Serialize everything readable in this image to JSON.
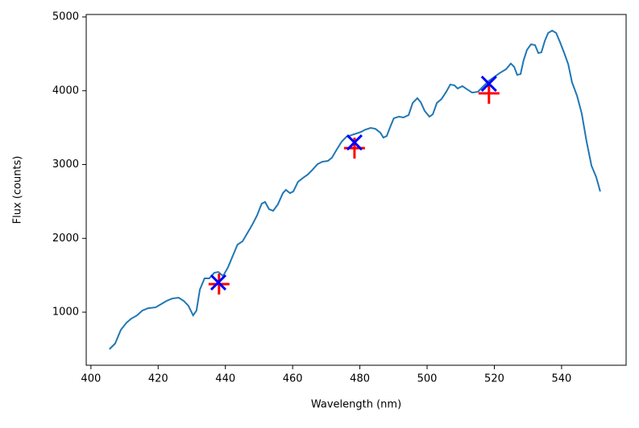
{
  "chart_data": {
    "type": "line",
    "xlabel": "Wavelength (nm)",
    "ylabel": "Flux (counts)",
    "xlim": [
      398.6,
      559.2
    ],
    "ylim": [
      281,
      5033
    ],
    "xticks": [
      400,
      420,
      440,
      460,
      480,
      500,
      520,
      540
    ],
    "yticks": [
      1000,
      2000,
      3000,
      4000,
      5000
    ],
    "series": [
      {
        "color": "#1f77b4",
        "x": [
          405.5,
          407.2,
          408.9,
          410.6,
          412.0,
          413.7,
          415.3,
          417.0,
          419.2,
          420.9,
          422.5,
          424.2,
          426.1,
          427.6,
          429.0,
          430.4,
          431.4,
          432.4,
          433.8,
          435.2,
          436.7,
          437.9,
          439.3,
          440.8,
          442.2,
          443.6,
          445.1,
          446.5,
          447.9,
          449.4,
          450.8,
          451.8,
          453.0,
          454.2,
          455.6,
          457.1,
          458.0,
          459.2,
          460.2,
          461.6,
          463.1,
          464.5,
          465.9,
          467.4,
          468.8,
          470.5,
          471.7,
          473.1,
          474.6,
          476.0,
          477.4,
          478.9,
          480.3,
          481.7,
          483.2,
          484.6,
          486.1,
          487.0,
          488.0,
          489.2,
          490.1,
          491.6,
          493.0,
          494.5,
          495.7,
          497.1,
          498.1,
          499.3,
          500.7,
          501.7,
          502.9,
          504.3,
          505.7,
          506.9,
          508.1,
          509.1,
          510.5,
          511.9,
          513.4,
          515.1,
          516.8,
          518.2,
          519.9,
          521.5,
          523.5,
          524.9,
          525.9,
          526.8,
          527.8,
          528.7,
          529.7,
          530.9,
          532.1,
          533.1,
          534.0,
          535.0,
          536.0,
          537.2,
          538.4,
          539.6,
          540.8,
          542.0,
          543.1,
          544.6,
          546.0,
          547.4,
          548.9,
          550.3,
          551.5
        ],
        "values": [
          499,
          575,
          760,
          858,
          913,
          956,
          1022,
          1054,
          1065,
          1109,
          1153,
          1185,
          1196,
          1153,
          1087,
          956,
          1022,
          1305,
          1458,
          1458,
          1534,
          1545,
          1490,
          1610,
          1763,
          1916,
          1960,
          2068,
          2177,
          2308,
          2471,
          2493,
          2395,
          2373,
          2460,
          2613,
          2657,
          2613,
          2635,
          2766,
          2820,
          2864,
          2929,
          3005,
          3038,
          3049,
          3093,
          3202,
          3311,
          3376,
          3398,
          3420,
          3441,
          3474,
          3496,
          3485,
          3431,
          3365,
          3387,
          3529,
          3627,
          3649,
          3638,
          3670,
          3834,
          3899,
          3845,
          3725,
          3649,
          3681,
          3834,
          3888,
          3986,
          4084,
          4073,
          4030,
          4063,
          4019,
          3975,
          3986,
          4063,
          4128,
          4183,
          4237,
          4292,
          4368,
          4324,
          4215,
          4226,
          4411,
          4553,
          4629,
          4619,
          4510,
          4520,
          4673,
          4782,
          4815,
          4782,
          4651,
          4510,
          4357,
          4117,
          3932,
          3692,
          3322,
          2984,
          2831,
          2635
        ]
      },
      {
        "color": "#ff0000",
        "marker": "+",
        "x": [
          438.1,
          478.4,
          518.4
        ],
        "values": [
          1381,
          3223,
          3965
        ]
      },
      {
        "color": "#0000ff",
        "marker": "x",
        "x": [
          437.9,
          478.4,
          518.4
        ],
        "values": [
          1403,
          3300,
          4095
        ]
      }
    ]
  }
}
